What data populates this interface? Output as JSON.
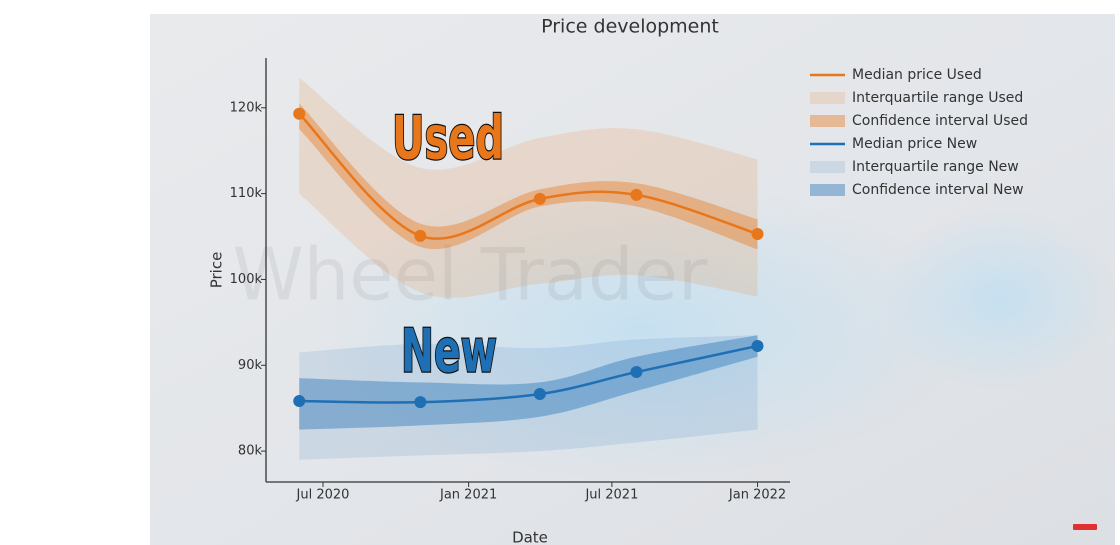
{
  "chart_data": {
    "type": "line",
    "title": "Price development",
    "x_label": "Date",
    "y_label": "Price",
    "x": [
      "2020-06",
      "2020-11",
      "2021-04",
      "2021-08",
      "2022-01"
    ],
    "xlim": [
      "2020-04-20",
      "2022-02-11"
    ],
    "xticks": [
      {
        "value": "2020-07",
        "label": "Jul 2020"
      },
      {
        "value": "2021-01",
        "label": "Jan 2021"
      },
      {
        "value": "2021-07",
        "label": "Jul 2021"
      },
      {
        "value": "2022-01",
        "label": "Jan 2022"
      }
    ],
    "ylim": [
      76400,
      125800
    ],
    "yticks": [
      {
        "value": 80000,
        "label": "80k"
      },
      {
        "value": 90000,
        "label": "90k"
      },
      {
        "value": 100000,
        "label": "100k"
      },
      {
        "value": 110000,
        "label": "110k"
      },
      {
        "value": 120000,
        "label": "120k"
      }
    ],
    "series": [
      {
        "name": "Median price Used",
        "type": "line",
        "color": "#e8761a",
        "values": [
          119300,
          105070,
          109390,
          109850,
          105300
        ]
      },
      {
        "name": "Interquartile range Used",
        "type": "area",
        "color": "#e8761a",
        "opacity": 0.15,
        "upper": [
          123500,
          113000,
          116500,
          117500,
          114000
        ],
        "lower": [
          110000,
          98500,
          99500,
          100500,
          98000
        ]
      },
      {
        "name": "Confidence interval Used",
        "type": "area",
        "color": "#e8761a",
        "opacity": 0.4,
        "upper": [
          120500,
          106500,
          110500,
          111200,
          107000
        ],
        "lower": [
          117500,
          103800,
          108500,
          108500,
          103500
        ]
      },
      {
        "name": "Median price New",
        "type": "line",
        "color": "#1f6fb4",
        "values": [
          85830,
          85700,
          86650,
          89210,
          92250
        ]
      },
      {
        "name": "Interquartile range New",
        "type": "area",
        "color": "#1f6fb4",
        "opacity": 0.12,
        "upper": [
          91500,
          92500,
          92000,
          93000,
          93500
        ],
        "lower": [
          79000,
          79500,
          80000,
          81000,
          82500
        ]
      },
      {
        "name": "Confidence interval New",
        "type": "area",
        "color": "#1f6fb4",
        "opacity": 0.4,
        "upper": [
          88500,
          88000,
          88000,
          91000,
          93500
        ],
        "lower": [
          82500,
          83000,
          84000,
          87000,
          91000
        ]
      }
    ],
    "annotations": [
      {
        "text": "Used",
        "color": "#e8761a"
      },
      {
        "text": "New",
        "color": "#1f6fb4"
      }
    ],
    "watermark": "Wheel Trader"
  }
}
